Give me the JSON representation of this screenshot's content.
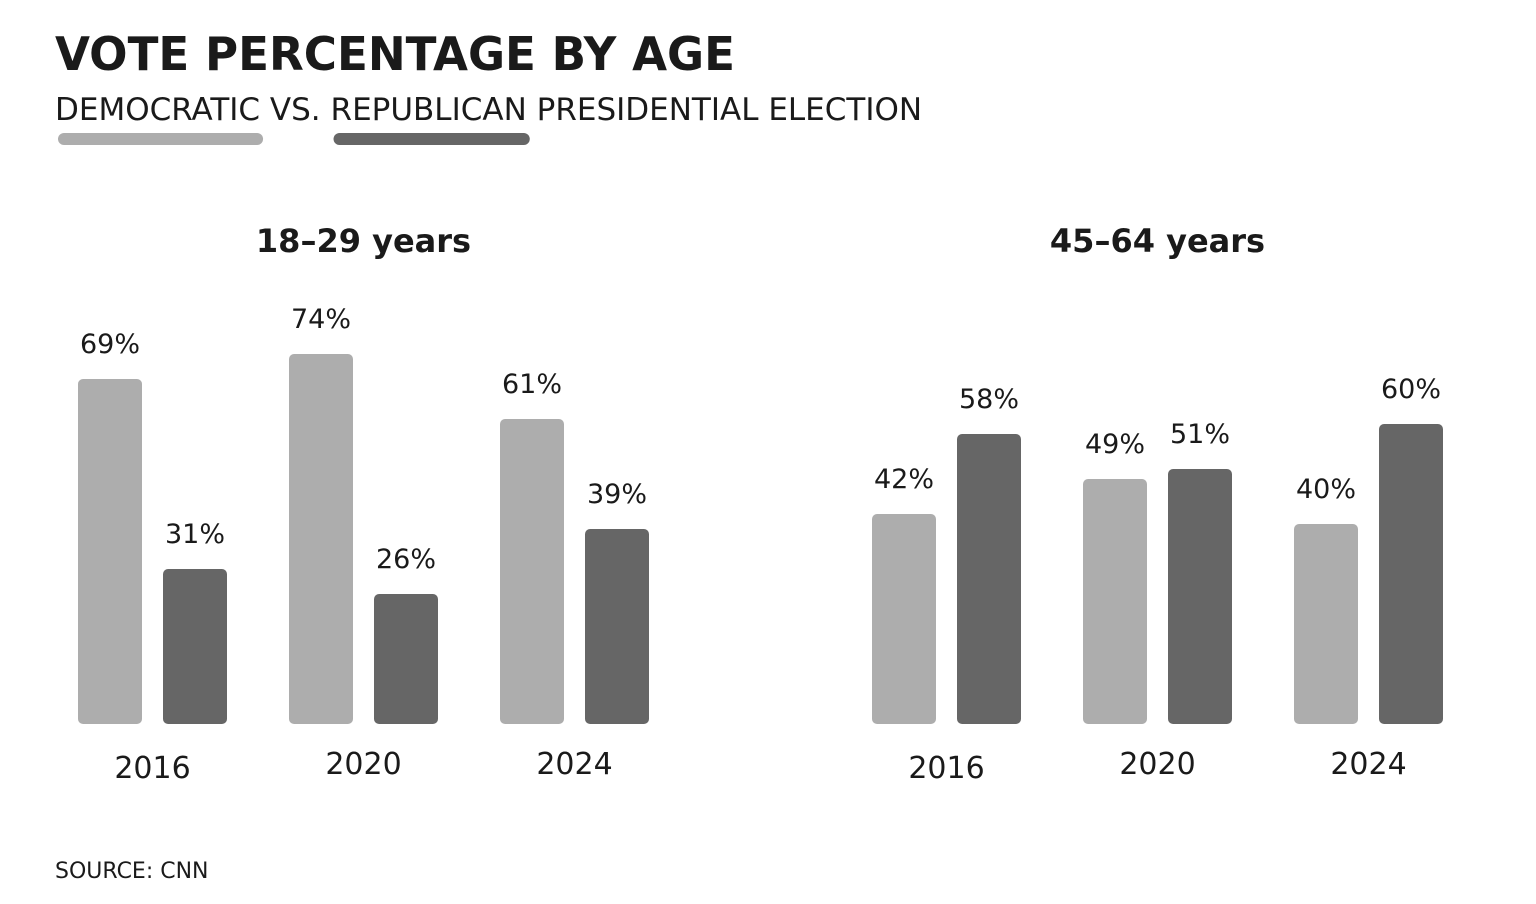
{
  "title": "VOTE PERCENTAGE BY AGE",
  "subtitle": {
    "joiner": "VS.",
    "ending": "PRESIDENTIAL ELECTION"
  },
  "source": "SOURCE: CNN",
  "chart_data": [
    {
      "type": "bar",
      "title": "18–29 years",
      "categories": [
        "2016",
        "2020",
        "2024"
      ],
      "series": [
        {
          "name": "DEMOCRATIC",
          "color": "#adadad",
          "values": [
            69,
            74,
            61
          ],
          "value_labels": [
            "69%",
            "74%",
            "61%"
          ]
        },
        {
          "name": "REPUBLICAN",
          "color": "#666666",
          "values": [
            31,
            26,
            39
          ],
          "value_labels": [
            "31%",
            "26%",
            "39%"
          ]
        }
      ]
    },
    {
      "type": "bar",
      "title": "45–64 years",
      "categories": [
        "2016",
        "2020",
        "2024"
      ],
      "series": [
        {
          "color": "#adadad",
          "values": [
            42,
            49,
            40
          ],
          "value_labels": [
            "42%",
            "49%",
            "40%"
          ]
        },
        {
          "color": "#666666",
          "values": [
            58,
            51,
            60
          ],
          "value_labels": [
            "58%",
            "51%",
            "60%"
          ]
        }
      ]
    }
  ]
}
